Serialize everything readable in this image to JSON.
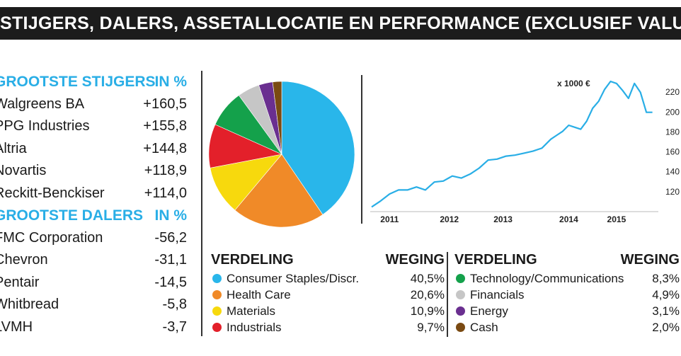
{
  "header": {
    "title": "STIJGERS, DALERS, ASSETALLOCATIE EN PERFORMANCE (EXCLUSIEF VALUTA)"
  },
  "gainers": {
    "heading": "GROOTSTE STIJGERS",
    "unit": "IN %",
    "rows": [
      {
        "name": "Walgreens BA",
        "value": "+160,5"
      },
      {
        "name": "PPG Industries",
        "value": "+155,8"
      },
      {
        "name": "Altria",
        "value": "+144,8"
      },
      {
        "name": "Novartis",
        "value": "+118,9"
      },
      {
        "name": "Reckitt-Benckiser",
        "value": "+114,0"
      }
    ]
  },
  "losers": {
    "heading": "GROOTSTE DALERS",
    "unit": "IN %",
    "rows": [
      {
        "name": "FMC Corporation",
        "value": "-56,2"
      },
      {
        "name": "Chevron",
        "value": "-31,1"
      },
      {
        "name": "Pentair",
        "value": "-14,5"
      },
      {
        "name": "Whitbread",
        "value": "-5,8"
      },
      {
        "name": "LVMH",
        "value": "-3,7"
      }
    ]
  },
  "legend_left": {
    "heading": "VERDELING",
    "weight_heading": "WEGING",
    "items": [
      {
        "label": "Consumer Staples/Discr.",
        "value": "40,5%",
        "color": "#29b6ea"
      },
      {
        "label": "Health Care",
        "value": "20,6%",
        "color": "#f08a28"
      },
      {
        "label": "Materials",
        "value": "10,9%",
        "color": "#f7d90d"
      },
      {
        "label": "Industrials",
        "value": "9,7%",
        "color": "#e3202a"
      }
    ]
  },
  "legend_right": {
    "heading": "VERDELING",
    "weight_heading": "WEGING",
    "items": [
      {
        "label": "Technology/Communications",
        "value": "8,3%",
        "color": "#14a14b"
      },
      {
        "label": "Financials",
        "value": "4,9%",
        "color": "#c6c6c6"
      },
      {
        "label": "Energy",
        "value": "3,1%",
        "color": "#6a2f90"
      },
      {
        "label": "Cash",
        "value": "2,0%",
        "color": "#7a4a12"
      }
    ]
  },
  "chart_data": [
    {
      "type": "pie",
      "labels": [
        "Consumer Staples/Discr.",
        "Health Care",
        "Materials",
        "Industrials",
        "Technology/Communications",
        "Financials",
        "Energy",
        "Cash"
      ],
      "values": [
        40.5,
        20.6,
        10.9,
        9.7,
        8.3,
        4.9,
        3.1,
        2.0
      ],
      "colors": [
        "#29b6ea",
        "#f08a28",
        "#f7d90d",
        "#e3202a",
        "#14a14b",
        "#c6c6c6",
        "#6a2f90",
        "#7a4a12"
      ]
    },
    {
      "type": "line",
      "unit_label": "x 1000 €",
      "x": [
        2010.9,
        2011.05,
        2011.2,
        2011.35,
        2011.5,
        2011.65,
        2011.8,
        2011.95,
        2012.1,
        2012.25,
        2012.4,
        2012.55,
        2012.7,
        2012.85,
        2013.0,
        2013.15,
        2013.3,
        2013.45,
        2013.6,
        2013.75,
        2013.9,
        2014.0,
        2014.1,
        2014.2,
        2014.3,
        2014.4,
        2014.5,
        2014.6,
        2014.7,
        2014.8,
        2014.9,
        2015.0,
        2015.1,
        2015.2,
        2015.3,
        2015.4,
        2015.5,
        2015.6
      ],
      "y": [
        104,
        110,
        117,
        121,
        121,
        124,
        121,
        129,
        130,
        135,
        133,
        137,
        143,
        151,
        152,
        155,
        156,
        158,
        160,
        163,
        172,
        176,
        180,
        186,
        184,
        182,
        190,
        203,
        210,
        222,
        230,
        228,
        221,
        213,
        228,
        219,
        199,
        199
      ],
      "xticks": [
        "2011",
        "2012",
        "2013",
        "2014",
        "2015"
      ],
      "xtick_values": [
        2011.2,
        2012.2,
        2013.1,
        2014.2,
        2015.0
      ],
      "yticks": [
        120,
        140,
        160,
        180,
        200,
        220
      ],
      "ytick_labels": [
        "120",
        "140",
        "160",
        "180",
        "200",
        "220"
      ],
      "xlim": [
        2010.9,
        2015.7
      ],
      "ylim": [
        100,
        235
      ]
    }
  ]
}
